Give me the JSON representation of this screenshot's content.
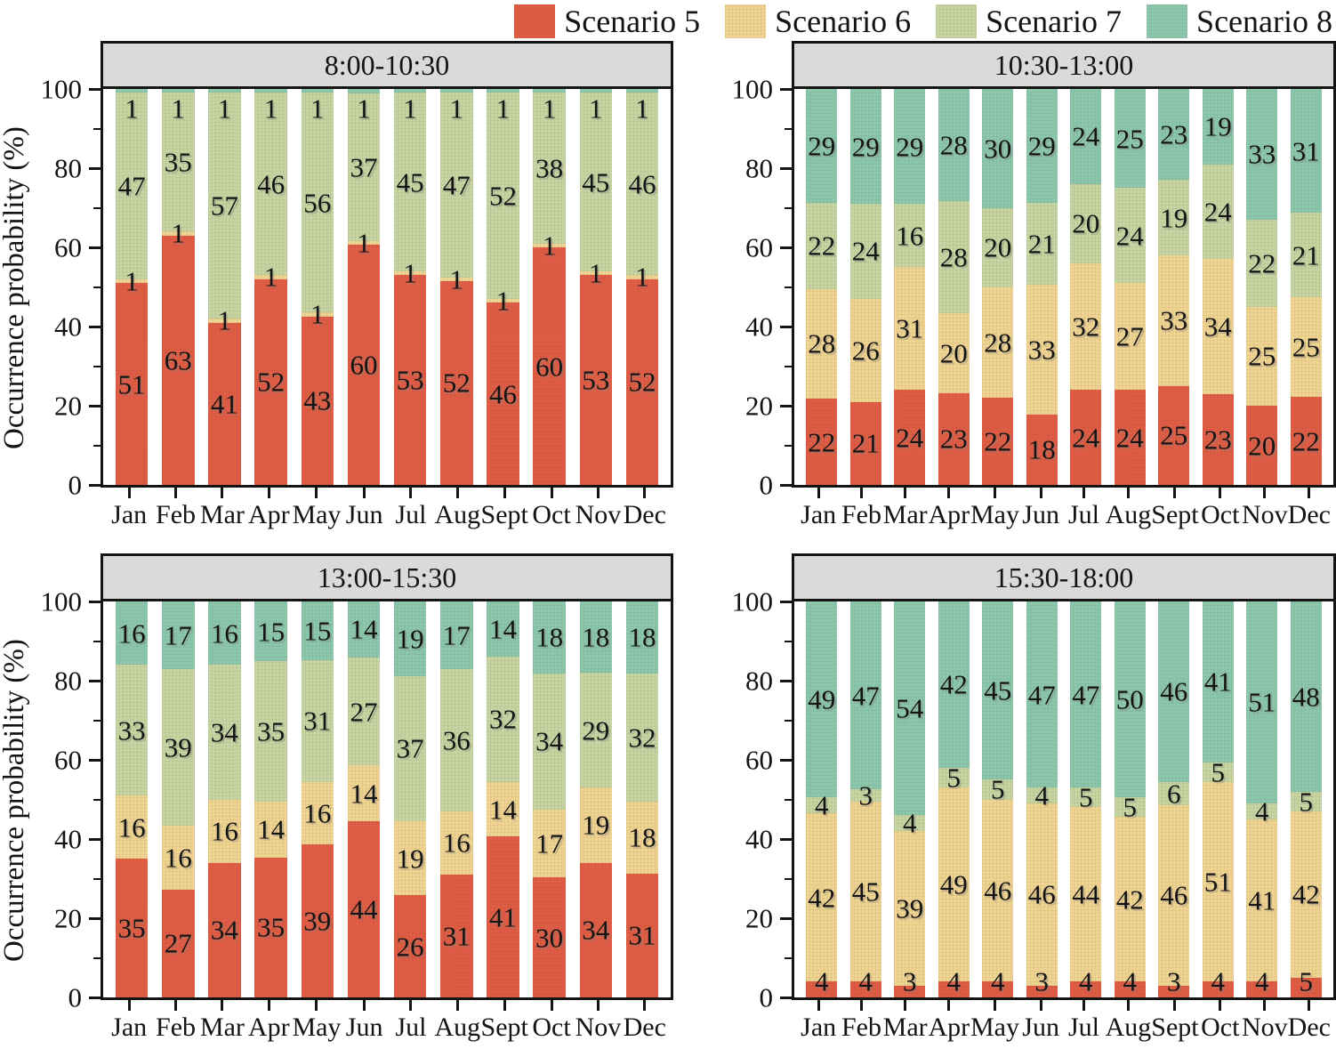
{
  "legend": {
    "items": [
      {
        "label": "Scenario 5",
        "color": "#E05C44"
      },
      {
        "label": "Scenario 6",
        "color": "#F0D492"
      },
      {
        "label": "Scenario 7",
        "color": "#C6D5A2"
      },
      {
        "label": "Scenario 8",
        "color": "#8BC7AC"
      }
    ],
    "position": "top-right"
  },
  "y_axis": {
    "title": "Occurrence probability (%)",
    "major_ticks": [
      0,
      20,
      40,
      60,
      80,
      100
    ],
    "minor_ticks": [
      10,
      30,
      50,
      70,
      90
    ]
  },
  "months": [
    "Jan",
    "Feb",
    "Mar",
    "Apr",
    "May",
    "Jun",
    "Jul",
    "Aug",
    "Sept",
    "Oct",
    "Nov",
    "Dec"
  ],
  "chart_data": [
    {
      "type": "bar",
      "stacked": true,
      "title": "8:00-10:30",
      "xlabel": "",
      "ylabel": "Occurrence probability (%)",
      "ylim": [
        0,
        100
      ],
      "grid": false,
      "legend_position": "top",
      "categories": [
        "Jan",
        "Feb",
        "Mar",
        "Apr",
        "May",
        "Jun",
        "Jul",
        "Aug",
        "Sept",
        "Oct",
        "Nov",
        "Dec"
      ],
      "series": [
        {
          "name": "Scenario 5",
          "color": "#E05C44",
          "values": [
            51,
            63,
            41,
            52,
            43,
            60,
            53,
            52,
            46,
            60,
            53,
            52
          ]
        },
        {
          "name": "Scenario 6",
          "color": "#F0D492",
          "values": [
            1,
            1,
            1,
            1,
            1,
            1,
            1,
            1,
            1,
            1,
            1,
            1
          ]
        },
        {
          "name": "Scenario 7",
          "color": "#C6D5A2",
          "values": [
            47,
            35,
            57,
            46,
            56,
            37,
            45,
            47,
            52,
            38,
            45,
            46
          ]
        },
        {
          "name": "Scenario 8",
          "color": "#8BC7AC",
          "values": [
            1,
            1,
            1,
            1,
            1,
            1,
            1,
            1,
            1,
            1,
            1,
            1
          ]
        }
      ]
    },
    {
      "type": "bar",
      "stacked": true,
      "title": "10:30-13:00",
      "xlabel": "",
      "ylabel": "",
      "ylim": [
        0,
        100
      ],
      "grid": false,
      "legend_position": "top",
      "categories": [
        "Jan",
        "Feb",
        "Mar",
        "Apr",
        "May",
        "Jun",
        "Jul",
        "Aug",
        "Sept",
        "Oct",
        "Nov",
        "Dec"
      ],
      "series": [
        {
          "name": "Scenario 5",
          "color": "#E05C44",
          "values": [
            22,
            21,
            24,
            23,
            22,
            18,
            24,
            24,
            25,
            23,
            20,
            22
          ]
        },
        {
          "name": "Scenario 6",
          "color": "#F0D492",
          "values": [
            28,
            26,
            31,
            20,
            28,
            33,
            32,
            27,
            33,
            34,
            25,
            25
          ]
        },
        {
          "name": "Scenario 7",
          "color": "#C6D5A2",
          "values": [
            22,
            24,
            16,
            28,
            20,
            21,
            20,
            24,
            19,
            24,
            22,
            21
          ]
        },
        {
          "name": "Scenario 8",
          "color": "#8BC7AC",
          "values": [
            29,
            29,
            29,
            28,
            30,
            29,
            24,
            25,
            23,
            19,
            33,
            31
          ]
        }
      ]
    },
    {
      "type": "bar",
      "stacked": true,
      "title": "13:00-15:30",
      "xlabel": "",
      "ylabel": "Occurrence probability (%)",
      "ylim": [
        0,
        100
      ],
      "grid": false,
      "legend_position": "top",
      "categories": [
        "Jan",
        "Feb",
        "Mar",
        "Apr",
        "May",
        "Jun",
        "Jul",
        "Aug",
        "Sept",
        "Oct",
        "Nov",
        "Dec"
      ],
      "series": [
        {
          "name": "Scenario 5",
          "color": "#E05C44",
          "values": [
            35,
            27,
            34,
            35,
            39,
            44,
            26,
            31,
            41,
            30,
            34,
            31
          ]
        },
        {
          "name": "Scenario 6",
          "color": "#F0D492",
          "values": [
            16,
            16,
            16,
            14,
            16,
            14,
            19,
            16,
            14,
            17,
            19,
            18
          ]
        },
        {
          "name": "Scenario 7",
          "color": "#C6D5A2",
          "values": [
            33,
            39,
            34,
            35,
            31,
            27,
            37,
            36,
            32,
            34,
            29,
            32
          ]
        },
        {
          "name": "Scenario 8",
          "color": "#8BC7AC",
          "values": [
            16,
            17,
            16,
            15,
            15,
            14,
            19,
            17,
            14,
            18,
            18,
            18
          ]
        }
      ]
    },
    {
      "type": "bar",
      "stacked": true,
      "title": "15:30-18:00",
      "xlabel": "",
      "ylabel": "",
      "ylim": [
        0,
        100
      ],
      "grid": false,
      "legend_position": "top",
      "categories": [
        "Jan",
        "Feb",
        "Mar",
        "Apr",
        "May",
        "Jun",
        "Jul",
        "Aug",
        "Sept",
        "Oct",
        "Nov",
        "Dec"
      ],
      "series": [
        {
          "name": "Scenario 5",
          "color": "#E05C44",
          "values": [
            4,
            4,
            3,
            4,
            4,
            3,
            4,
            4,
            3,
            4,
            4,
            5
          ]
        },
        {
          "name": "Scenario 6",
          "color": "#F0D492",
          "values": [
            42,
            45,
            39,
            49,
            46,
            46,
            44,
            42,
            46,
            51,
            41,
            42
          ]
        },
        {
          "name": "Scenario 7",
          "color": "#C6D5A2",
          "values": [
            4,
            3,
            4,
            5,
            5,
            4,
            5,
            5,
            6,
            5,
            4,
            5
          ]
        },
        {
          "name": "Scenario 8",
          "color": "#8BC7AC",
          "values": [
            49,
            47,
            54,
            42,
            45,
            47,
            47,
            50,
            46,
            41,
            51,
            48
          ]
        }
      ]
    }
  ]
}
